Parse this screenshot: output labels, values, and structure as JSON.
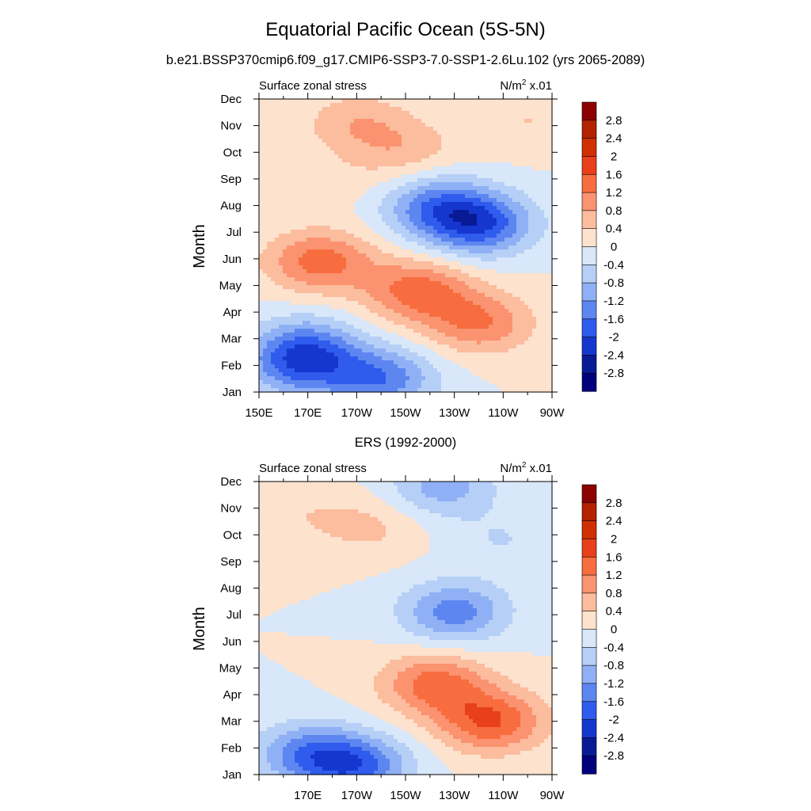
{
  "figure": {
    "title": "Equatorial Pacific Ocean (5S-5N)"
  },
  "chart_data": [
    {
      "type": "heatmap",
      "title": "b.e21.BSSP370cmip6.f09_g17.CMIP6-SSP3-7.0-SSP1-2.6Lu.102 (yrs 2065-2089)",
      "left_label": "Surface zonal stress",
      "units_base": "N/m",
      "units_sup": "2",
      "units_tail": " x.01",
      "ylabel": "Month",
      "x_ticks": [
        "150E",
        "170E",
        "170W",
        "150W",
        "130W",
        "110W",
        "90W"
      ],
      "y_ticks": [
        "Jan",
        "Feb",
        "Mar",
        "Apr",
        "May",
        "Jun",
        "Jul",
        "Aug",
        "Sep",
        "Oct",
        "Nov",
        "Dec"
      ],
      "x_range_deg_east": [
        150,
        270
      ],
      "colorbar_labels": [
        "2.8",
        "2.4",
        "2",
        "1.6",
        "1.2",
        "0.8",
        "0.4",
        "0",
        "-0.4",
        "-0.8",
        "-1.2",
        "-1.6",
        "-2",
        "-2.4",
        "-2.8"
      ],
      "features": [
        {
          "lon": 200,
          "month": 0.5,
          "value": -1.5
        },
        {
          "lon": 167,
          "month": 1.0,
          "value": -1.5
        },
        {
          "lon": 170,
          "month": 1.8,
          "value": -1.0
        },
        {
          "lon": 240,
          "month": 2.6,
          "value": 1.2
        },
        {
          "lon": 215,
          "month": 3.8,
          "value": 1.4
        },
        {
          "lon": 175,
          "month": 4.9,
          "value": 1.4
        },
        {
          "lon": 240,
          "month": 6.3,
          "value": -1.9
        },
        {
          "lon": 222,
          "month": 7.0,
          "value": -1.3
        },
        {
          "lon": 185,
          "month": 7.9,
          "value": 0.2
        },
        {
          "lon": 210,
          "month": 9.1,
          "value": 0.6
        },
        {
          "lon": 190,
          "month": 10.1,
          "value": 0.7
        },
        {
          "lon": 260,
          "month": 10.2,
          "value": 0.4
        }
      ]
    },
    {
      "type": "heatmap",
      "title": "ERS (1992-2000)",
      "left_label": "Surface zonal stress",
      "units_base": "N/m",
      "units_sup": "2",
      "units_tail": " x.01",
      "ylabel": "Month",
      "x_ticks": [
        "170E",
        "170W",
        "150W",
        "130W",
        "110W",
        "90W"
      ],
      "y_ticks": [
        "Jan",
        "Feb",
        "Mar",
        "Apr",
        "May",
        "Jun",
        "Jul",
        "Aug",
        "Sep",
        "Oct",
        "Nov",
        "Dec"
      ],
      "x_range_deg_east": [
        150,
        270
      ],
      "colorbar_labels": [
        "2.8",
        "2.4",
        "2",
        "1.6",
        "1.2",
        "0.8",
        "0.4",
        "0",
        "-0.4",
        "-0.8",
        "-1.2",
        "-1.6",
        "-2",
        "-2.4",
        "-2.8"
      ],
      "features": [
        {
          "lon": 190,
          "month": 0.3,
          "value": -1.6
        },
        {
          "lon": 170,
          "month": 0.8,
          "value": -1.3
        },
        {
          "lon": 245,
          "month": 2.0,
          "value": 1.6
        },
        {
          "lon": 222,
          "month": 3.4,
          "value": 1.4
        },
        {
          "lon": 230,
          "month": 6.1,
          "value": -1.4
        },
        {
          "lon": 225,
          "month": 10.8,
          "value": -1.0
        },
        {
          "lon": 195,
          "month": 9.3,
          "value": 0.5
        },
        {
          "lon": 165,
          "month": 9.8,
          "value": 0.3
        },
        {
          "lon": 250,
          "month": 8.8,
          "value": -0.4
        }
      ]
    }
  ]
}
